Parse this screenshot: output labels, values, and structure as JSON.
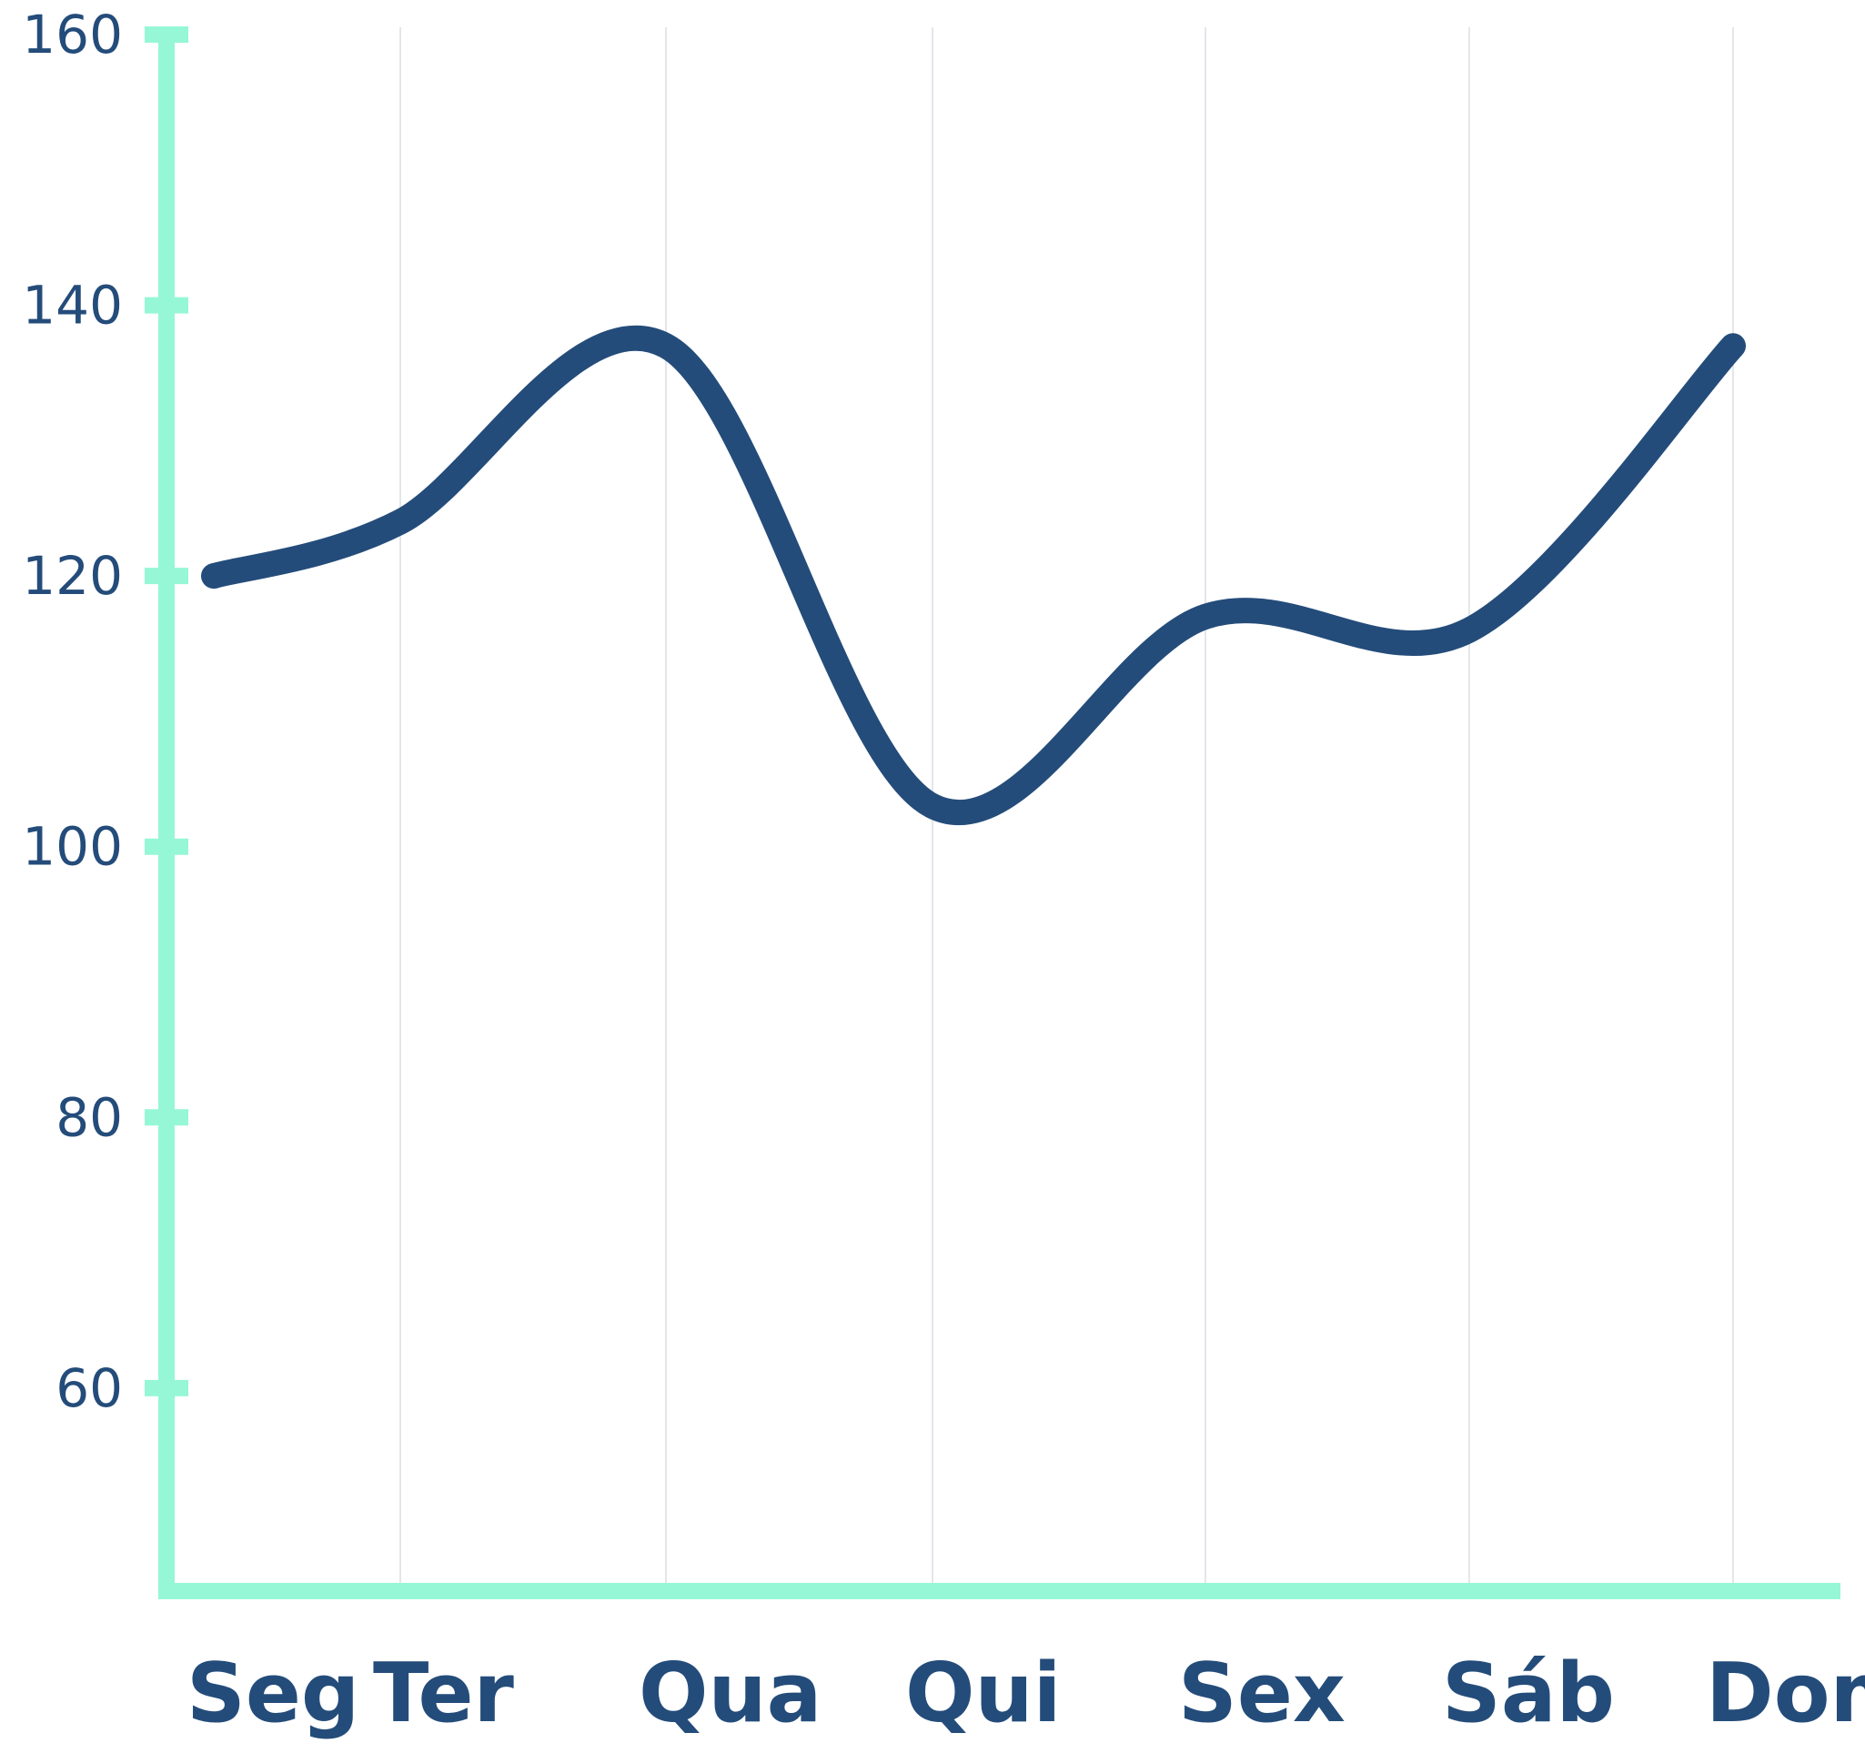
{
  "chart_data": {
    "type": "line",
    "categories": [
      "Seg",
      "Ter",
      "Qua",
      "Qui",
      "Sex",
      "Sáb",
      "Dom"
    ],
    "series": [
      {
        "values": [
          120,
          124,
          137,
          103,
          117,
          116,
          137
        ]
      }
    ],
    "y_ticks": [
      "60",
      "80",
      "100",
      "120",
      "140",
      "160"
    ],
    "ylim": [
      45,
      160
    ],
    "grid": "vertical",
    "legend": "none",
    "colors": {
      "axis": "#96f7d6",
      "line": "#244c7a",
      "text": "#244c7a",
      "grid": "#e3e6ea"
    }
  }
}
